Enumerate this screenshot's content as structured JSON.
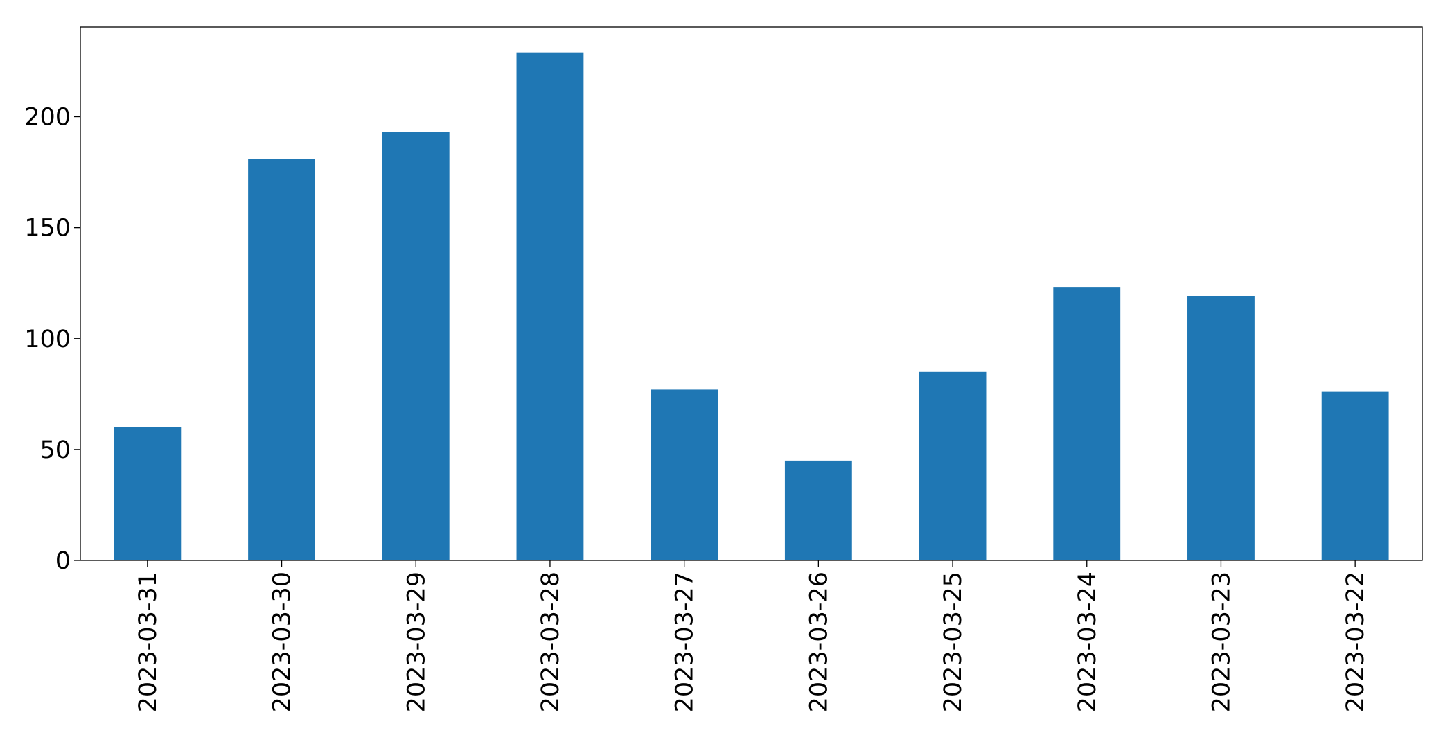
{
  "chart_data": {
    "type": "bar",
    "categories": [
      "2023-03-31",
      "2023-03-30",
      "2023-03-29",
      "2023-03-28",
      "2023-03-27",
      "2023-03-26",
      "2023-03-25",
      "2023-03-24",
      "2023-03-23",
      "2023-03-22"
    ],
    "values": [
      60,
      181,
      193,
      229,
      77,
      45,
      85,
      123,
      119,
      76
    ],
    "color": "#1f77b4",
    "ylim": [
      0,
      240.45
    ],
    "yticks": [
      0,
      50,
      100,
      150,
      200
    ],
    "grid": false
  }
}
